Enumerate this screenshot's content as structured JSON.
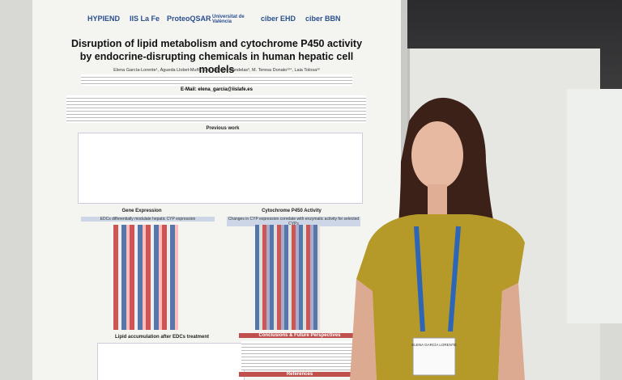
{
  "poster": {
    "logos": [
      "HYPIEND",
      "IIS La Fe",
      "ProteoQSAR",
      "Universitat de València",
      "ciber EHD",
      "ciber BBN"
    ],
    "title": "Disruption of lipid metabolism and cytochrome P450 activity by endocrine-disrupting chemicals in human hepatic cell models",
    "authors": "Elena García-Lorente¹, Águeda Llobet-Muñ², Eva Serrano-Candelas³, M. Teresa Donato¹²⁴, Laia Tolosa¹²",
    "email": "E-Mail: elena_garcia@iislafe.es",
    "sections": [
      "Previous work",
      "Gene Expression",
      "Cytochrome P450 Activity",
      "Lipid accumulation after EDCs treatment",
      "Conclusions & Future Perspectives",
      "References"
    ],
    "subtitles": [
      "EDCs differentially modulate hepatic CYP expression",
      "Changes in CYP expression correlate with enzymatic activity for selected CYPs"
    ]
  },
  "badge": "ELENA GARCÍA LORENTE"
}
